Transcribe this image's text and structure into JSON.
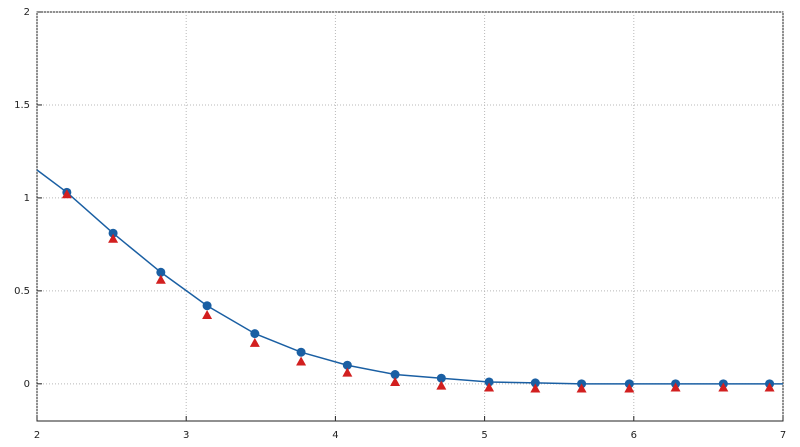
{
  "chart_data": {
    "type": "line",
    "xlim": [
      2,
      7
    ],
    "xticks": [
      2,
      3,
      4,
      5,
      6,
      7
    ],
    "ylim": [
      -0.2,
      2
    ],
    "yticks": [
      0,
      0.5,
      1,
      1.5,
      2
    ],
    "grid": true,
    "series": [
      {
        "color": "#1a5fa3",
        "marker": "none",
        "x": [
          2,
          2.2,
          2.51,
          2.83,
          3.14,
          3.46,
          3.77,
          4.08,
          4.4,
          4.71,
          5.03,
          5.34,
          5.65,
          5.97,
          6.28,
          6.6,
          6.91,
          7
        ],
        "values": [
          1.15,
          1.03,
          0.81,
          0.6,
          0.42,
          0.27,
          0.17,
          0.1,
          0.05,
          0.03,
          0.01,
          0.005,
          0,
          0,
          0,
          0,
          0,
          0
        ]
      },
      {
        "color": "#1a5fa3",
        "marker": "circle",
        "x": [
          2.2,
          2.51,
          2.83,
          3.14,
          3.46,
          3.77,
          4.08,
          4.4,
          4.71,
          5.03,
          5.34,
          5.65,
          5.97,
          6.28,
          6.6,
          6.91
        ],
        "values": [
          1.03,
          0.81,
          0.6,
          0.42,
          0.27,
          0.17,
          0.1,
          0.05,
          0.03,
          0.01,
          0.005,
          0,
          0,
          0,
          0,
          0
        ]
      },
      {
        "color": "#d21f1f",
        "marker": "triangle",
        "x": [
          2.2,
          2.51,
          2.83,
          3.14,
          3.46,
          3.77,
          4.08,
          4.4,
          4.71,
          5.03,
          5.34,
          5.65,
          5.97,
          6.28,
          6.6,
          6.91
        ],
        "values": [
          1.02,
          0.78,
          0.56,
          0.37,
          0.22,
          0.12,
          0.06,
          0.01,
          -0.01,
          -0.02,
          -0.025,
          -0.025,
          -0.025,
          -0.02,
          -0.02,
          -0.02
        ]
      }
    ]
  }
}
